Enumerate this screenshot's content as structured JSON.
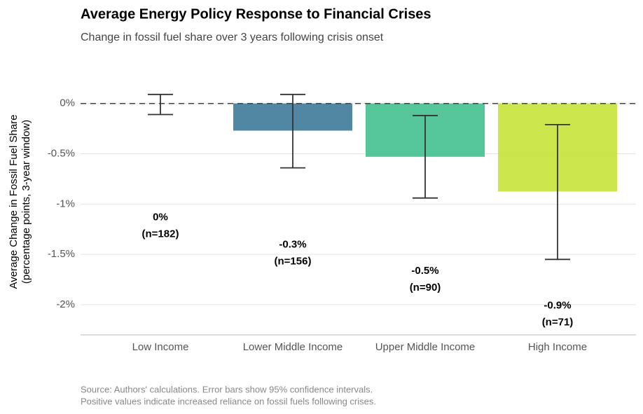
{
  "chart_data": {
    "type": "bar",
    "title": "Average Energy Policy Response to Financial Crises",
    "subtitle": "Change in fossil fuel share over 3 years following crisis onset",
    "y_label": [
      "Average Change in Fossil Fuel Share",
      "(percentage points, 3-year window)"
    ],
    "caption": [
      "Source: Authors' calculations. Error bars show 95% confidence intervals.",
      "Positive values indicate increased reliance on fossil fuels following crises."
    ],
    "categories": [
      "Low Income",
      "Lower Middle Income",
      "Upper Middle Income",
      "High Income"
    ],
    "values": [
      0,
      -0.27,
      -0.53,
      -0.875
    ],
    "value_labels": [
      "0%",
      "-0.3%",
      "-0.5%",
      "-0.9%"
    ],
    "n_labels": [
      "(n=182)",
      "(n=156)",
      "(n=90)",
      "(n=71)"
    ],
    "ci_low": [
      -0.11,
      -0.64,
      -0.94,
      -1.55
    ],
    "ci_high": [
      0.09,
      0.09,
      -0.12,
      -0.21
    ],
    "colors": [
      "#482878",
      "#3f7a99",
      "#43bf8f",
      "#c5e33a"
    ],
    "hline": 0,
    "ylim": [
      -2.3,
      0.2
    ],
    "yticks": [
      {
        "value": 0,
        "label": "0%"
      },
      {
        "value": -0.5,
        "label": "-0.5%"
      },
      {
        "value": -1,
        "label": "-1%"
      },
      {
        "value": -1.5,
        "label": "-1.5%"
      },
      {
        "value": -2,
        "label": "-2%"
      }
    ],
    "grid": true
  }
}
